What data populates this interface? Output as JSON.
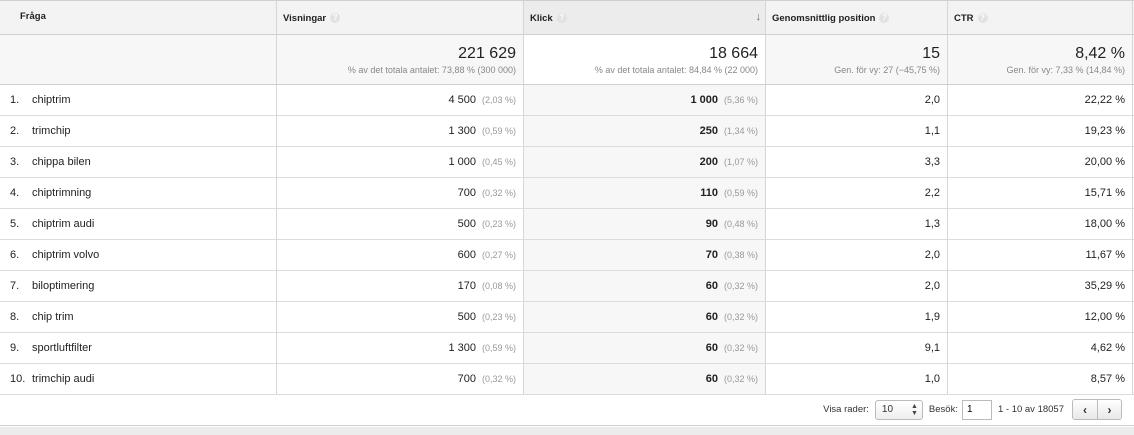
{
  "columns": {
    "query": "Fråga",
    "impressions": "Visningar",
    "clicks": "Klick",
    "avg_position": "Genomsnittlig position",
    "ctr": "CTR",
    "help_glyph": "?",
    "sort_glyph": "↓"
  },
  "totals": {
    "impressions": "221 629",
    "impressions_note": "% av det totala antalet: 73,88 % (300 000)",
    "clicks": "18 664",
    "clicks_note": "% av det totala antalet: 84,84 % (22 000)",
    "avg_position": "15",
    "avg_position_note": "Gen. för vy: 27 (−45,75 %)",
    "ctr": "8,42 %",
    "ctr_note": "Gen. för vy: 7,33 % (14,84 %)"
  },
  "rows": [
    {
      "num": "1.",
      "query": "chiptrim",
      "impressions": "4 500",
      "impressions_pct": "(2,03 %)",
      "clicks": "1 000",
      "clicks_pct": "(5,36 %)",
      "position": "2,0",
      "ctr": "22,22 %"
    },
    {
      "num": "2.",
      "query": "trimchip",
      "impressions": "1 300",
      "impressions_pct": "(0,59 %)",
      "clicks": "250",
      "clicks_pct": "(1,34 %)",
      "position": "1,1",
      "ctr": "19,23 %"
    },
    {
      "num": "3.",
      "query": "chippa bilen",
      "impressions": "1 000",
      "impressions_pct": "(0,45 %)",
      "clicks": "200",
      "clicks_pct": "(1,07 %)",
      "position": "3,3",
      "ctr": "20,00 %"
    },
    {
      "num": "4.",
      "query": "chiptrimning",
      "impressions": "700",
      "impressions_pct": "(0,32 %)",
      "clicks": "110",
      "clicks_pct": "(0,59 %)",
      "position": "2,2",
      "ctr": "15,71 %"
    },
    {
      "num": "5.",
      "query": "chiptrim audi",
      "impressions": "500",
      "impressions_pct": "(0,23 %)",
      "clicks": "90",
      "clicks_pct": "(0,48 %)",
      "position": "1,3",
      "ctr": "18,00 %"
    },
    {
      "num": "6.",
      "query": "chiptrim volvo",
      "impressions": "600",
      "impressions_pct": "(0,27 %)",
      "clicks": "70",
      "clicks_pct": "(0,38 %)",
      "position": "2,0",
      "ctr": "11,67 %"
    },
    {
      "num": "7.",
      "query": "biloptimering",
      "impressions": "170",
      "impressions_pct": "(0,08 %)",
      "clicks": "60",
      "clicks_pct": "(0,32 %)",
      "position": "2,0",
      "ctr": "35,29 %"
    },
    {
      "num": "8.",
      "query": "chip trim",
      "impressions": "500",
      "impressions_pct": "(0,23 %)",
      "clicks": "60",
      "clicks_pct": "(0,32 %)",
      "position": "1,9",
      "ctr": "12,00 %"
    },
    {
      "num": "9.",
      "query": "sportluftfilter",
      "impressions": "1 300",
      "impressions_pct": "(0,59 %)",
      "clicks": "60",
      "clicks_pct": "(0,32 %)",
      "position": "9,1",
      "ctr": "4,62 %"
    },
    {
      "num": "10.",
      "query": "trimchip audi",
      "impressions": "700",
      "impressions_pct": "(0,32 %)",
      "clicks": "60",
      "clicks_pct": "(0,32 %)",
      "position": "1,0",
      "ctr": "8,57 %"
    }
  ],
  "footer": {
    "rows_label": "Visa rader:",
    "rows_value": "10",
    "select_arrow_up": "▲",
    "select_arrow_down": "▼",
    "goto_label": "Besök:",
    "goto_value": "1",
    "range": "1 - 10 av 18057",
    "prev_glyph": "‹",
    "next_glyph": "›"
  }
}
